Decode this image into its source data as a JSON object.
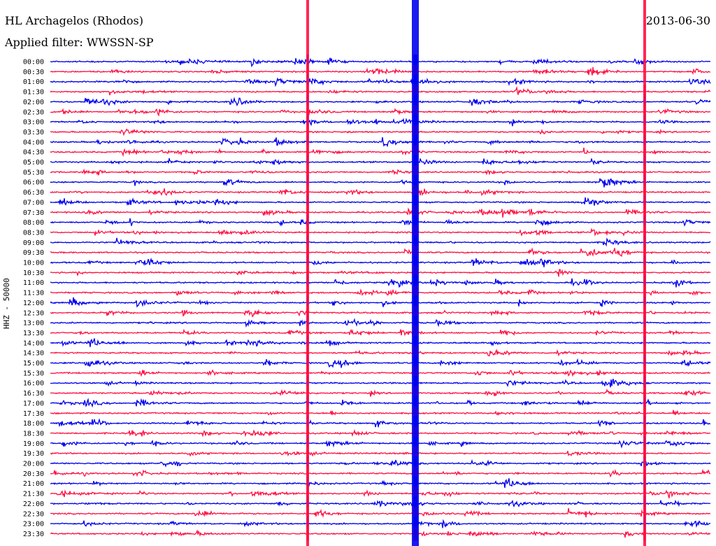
{
  "header": {
    "station": "HL Archagelos (Rhodos)",
    "filter": "Applied filter: WWSSN-SP",
    "date": "2013-06-30"
  },
  "colors": {
    "trace_a": "#0000ee",
    "trace_b": "#ff1044",
    "background": "#ffffff"
  },
  "chart_data": {
    "type": "line",
    "ylabel": "HHZ - 50000",
    "categories": [
      "00:00",
      "00:30",
      "01:00",
      "01:30",
      "02:00",
      "02:30",
      "03:00",
      "03:30",
      "04:00",
      "04:30",
      "05:00",
      "05:30",
      "06:00",
      "06:30",
      "07:00",
      "07:30",
      "08:00",
      "08:30",
      "09:00",
      "09:30",
      "10:00",
      "10:30",
      "11:00",
      "11:30",
      "12:00",
      "12:30",
      "13:00",
      "13:30",
      "14:00",
      "14:30",
      "15:00",
      "15:30",
      "16:00",
      "16:30",
      "17:00",
      "17:30",
      "18:00",
      "18:30",
      "19:00",
      "19:30",
      "20:00",
      "20:30",
      "21:00",
      "21:30",
      "22:00",
      "22:30",
      "23:00",
      "23:30"
    ],
    "grid": false,
    "legend": "none"
  }
}
